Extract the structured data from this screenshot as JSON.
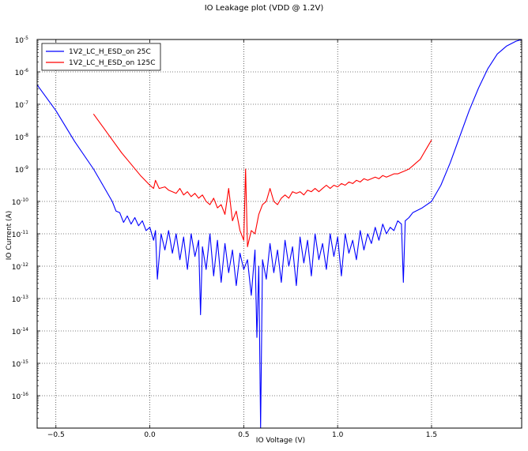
{
  "chart_data": {
    "type": "line",
    "title": "IO Leakage plot (VDD @ 1.2V)",
    "xlabel": "IO Voltage (V)",
    "ylabel": "IO Current (A)",
    "xlim": [
      -0.6,
      1.98
    ],
    "ylim_log10": [
      -17.0,
      -5.0
    ],
    "y_scale": "log",
    "x_ticks": [
      {
        "v": -0.5,
        "label": "−0.5"
      },
      {
        "v": 0.0,
        "label": "0.0"
      },
      {
        "v": 0.5,
        "label": "0.5"
      },
      {
        "v": 1.0,
        "label": "1.0"
      },
      {
        "v": 1.5,
        "label": "1.5"
      }
    ],
    "y_ticks": [
      {
        "e": -5,
        "label": "-5"
      },
      {
        "e": -6,
        "label": "-6"
      },
      {
        "e": -7,
        "label": "-7"
      },
      {
        "e": -8,
        "label": "-8"
      },
      {
        "e": -9,
        "label": "-9"
      },
      {
        "e": -10,
        "label": "-10"
      },
      {
        "e": -11,
        "label": "-11"
      },
      {
        "e": -12,
        "label": "-12"
      },
      {
        "e": -13,
        "label": "-13"
      },
      {
        "e": -14,
        "label": "-14"
      },
      {
        "e": -15,
        "label": "-15"
      },
      {
        "e": -16,
        "label": "-16"
      }
    ],
    "y_tick_base": "10",
    "grid": true,
    "legend_position": "top-left",
    "series": [
      {
        "name": "1V2_LC_H_ESD_on 25C",
        "color": "#0000ff",
        "points": [
          [
            -0.6,
            -6.4
          ],
          [
            -0.5,
            -7.2
          ],
          [
            -0.4,
            -8.15
          ],
          [
            -0.3,
            -9.0
          ],
          [
            -0.25,
            -9.5
          ],
          [
            -0.2,
            -10.0
          ],
          [
            -0.18,
            -10.3
          ],
          [
            -0.16,
            -10.35
          ],
          [
            -0.14,
            -10.65
          ],
          [
            -0.12,
            -10.45
          ],
          [
            -0.1,
            -10.7
          ],
          [
            -0.08,
            -10.5
          ],
          [
            -0.06,
            -10.75
          ],
          [
            -0.04,
            -10.6
          ],
          [
            -0.02,
            -10.9
          ],
          [
            0.0,
            -10.8
          ],
          [
            0.02,
            -11.2
          ],
          [
            0.03,
            -10.9
          ],
          [
            0.04,
            -12.4
          ],
          [
            0.06,
            -11.0
          ],
          [
            0.08,
            -11.5
          ],
          [
            0.1,
            -10.9
          ],
          [
            0.12,
            -11.6
          ],
          [
            0.14,
            -11.0
          ],
          [
            0.16,
            -11.8
          ],
          [
            0.18,
            -11.1
          ],
          [
            0.2,
            -12.1
          ],
          [
            0.22,
            -11.0
          ],
          [
            0.24,
            -11.7
          ],
          [
            0.26,
            -11.2
          ],
          [
            0.27,
            -13.5
          ],
          [
            0.28,
            -11.4
          ],
          [
            0.3,
            -12.1
          ],
          [
            0.32,
            -11.0
          ],
          [
            0.34,
            -12.3
          ],
          [
            0.36,
            -11.2
          ],
          [
            0.38,
            -12.5
          ],
          [
            0.4,
            -11.3
          ],
          [
            0.42,
            -12.2
          ],
          [
            0.44,
            -11.5
          ],
          [
            0.46,
            -12.6
          ],
          [
            0.48,
            -11.6
          ],
          [
            0.5,
            -12.1
          ],
          [
            0.52,
            -11.8
          ],
          [
            0.54,
            -12.9
          ],
          [
            0.56,
            -11.5
          ],
          [
            0.57,
            -14.2
          ],
          [
            0.58,
            -12.0
          ],
          [
            0.59,
            -17.0
          ],
          [
            0.6,
            -11.8
          ],
          [
            0.62,
            -12.4
          ],
          [
            0.64,
            -11.3
          ],
          [
            0.66,
            -12.2
          ],
          [
            0.68,
            -11.5
          ],
          [
            0.7,
            -12.5
          ],
          [
            0.72,
            -11.2
          ],
          [
            0.74,
            -12.0
          ],
          [
            0.76,
            -11.4
          ],
          [
            0.78,
            -12.6
          ],
          [
            0.8,
            -11.1
          ],
          [
            0.82,
            -11.9
          ],
          [
            0.84,
            -11.2
          ],
          [
            0.86,
            -12.3
          ],
          [
            0.88,
            -11.0
          ],
          [
            0.9,
            -11.8
          ],
          [
            0.92,
            -11.3
          ],
          [
            0.94,
            -12.1
          ],
          [
            0.96,
            -11.0
          ],
          [
            0.98,
            -11.7
          ],
          [
            1.0,
            -11.1
          ],
          [
            1.02,
            -12.3
          ],
          [
            1.04,
            -11.0
          ],
          [
            1.06,
            -11.6
          ],
          [
            1.08,
            -11.2
          ],
          [
            1.1,
            -11.8
          ],
          [
            1.12,
            -10.9
          ],
          [
            1.14,
            -11.5
          ],
          [
            1.16,
            -11.0
          ],
          [
            1.18,
            -11.3
          ],
          [
            1.2,
            -10.8
          ],
          [
            1.22,
            -11.2
          ],
          [
            1.24,
            -10.7
          ],
          [
            1.26,
            -11.0
          ],
          [
            1.28,
            -10.8
          ],
          [
            1.3,
            -10.9
          ],
          [
            1.32,
            -10.6
          ],
          [
            1.34,
            -10.7
          ],
          [
            1.35,
            -12.5
          ],
          [
            1.36,
            -10.6
          ],
          [
            1.38,
            -10.5
          ],
          [
            1.4,
            -10.35
          ],
          [
            1.45,
            -10.2
          ],
          [
            1.5,
            -10.0
          ],
          [
            1.55,
            -9.5
          ],
          [
            1.6,
            -8.8
          ],
          [
            1.65,
            -8.0
          ],
          [
            1.7,
            -7.2
          ],
          [
            1.75,
            -6.5
          ],
          [
            1.8,
            -5.9
          ],
          [
            1.85,
            -5.45
          ],
          [
            1.9,
            -5.2
          ],
          [
            1.95,
            -5.05
          ],
          [
            1.98,
            -5.0
          ]
        ]
      },
      {
        "name": "1V2_LC_H_ESD_on 125C",
        "color": "#ff0000",
        "points": [
          [
            -0.3,
            -7.3
          ],
          [
            -0.25,
            -7.7
          ],
          [
            -0.2,
            -8.1
          ],
          [
            -0.15,
            -8.5
          ],
          [
            -0.1,
            -8.85
          ],
          [
            -0.05,
            -9.2
          ],
          [
            0.0,
            -9.5
          ],
          [
            0.02,
            -9.6
          ],
          [
            0.03,
            -9.35
          ],
          [
            0.05,
            -9.6
          ],
          [
            0.08,
            -9.55
          ],
          [
            0.1,
            -9.65
          ],
          [
            0.12,
            -9.7
          ],
          [
            0.14,
            -9.75
          ],
          [
            0.16,
            -9.6
          ],
          [
            0.18,
            -9.8
          ],
          [
            0.2,
            -9.7
          ],
          [
            0.22,
            -9.85
          ],
          [
            0.24,
            -9.75
          ],
          [
            0.26,
            -9.9
          ],
          [
            0.28,
            -9.8
          ],
          [
            0.3,
            -10.0
          ],
          [
            0.32,
            -10.1
          ],
          [
            0.34,
            -9.9
          ],
          [
            0.36,
            -10.2
          ],
          [
            0.38,
            -10.1
          ],
          [
            0.4,
            -10.4
          ],
          [
            0.42,
            -9.6
          ],
          [
            0.44,
            -10.6
          ],
          [
            0.46,
            -10.3
          ],
          [
            0.48,
            -10.9
          ],
          [
            0.5,
            -11.2
          ],
          [
            0.51,
            -9.0
          ],
          [
            0.52,
            -11.4
          ],
          [
            0.54,
            -10.9
          ],
          [
            0.56,
            -11.0
          ],
          [
            0.58,
            -10.4
          ],
          [
            0.6,
            -10.1
          ],
          [
            0.62,
            -10.0
          ],
          [
            0.64,
            -9.6
          ],
          [
            0.66,
            -10.0
          ],
          [
            0.68,
            -10.1
          ],
          [
            0.7,
            -9.9
          ],
          [
            0.72,
            -9.8
          ],
          [
            0.74,
            -9.9
          ],
          [
            0.76,
            -9.7
          ],
          [
            0.78,
            -9.75
          ],
          [
            0.8,
            -9.7
          ],
          [
            0.82,
            -9.8
          ],
          [
            0.84,
            -9.65
          ],
          [
            0.86,
            -9.7
          ],
          [
            0.88,
            -9.6
          ],
          [
            0.9,
            -9.7
          ],
          [
            0.92,
            -9.6
          ],
          [
            0.94,
            -9.5
          ],
          [
            0.96,
            -9.6
          ],
          [
            0.98,
            -9.5
          ],
          [
            1.0,
            -9.55
          ],
          [
            1.02,
            -9.45
          ],
          [
            1.04,
            -9.5
          ],
          [
            1.06,
            -9.4
          ],
          [
            1.08,
            -9.45
          ],
          [
            1.1,
            -9.35
          ],
          [
            1.12,
            -9.4
          ],
          [
            1.14,
            -9.3
          ],
          [
            1.16,
            -9.35
          ],
          [
            1.18,
            -9.3
          ],
          [
            1.2,
            -9.25
          ],
          [
            1.22,
            -9.3
          ],
          [
            1.24,
            -9.2
          ],
          [
            1.26,
            -9.25
          ],
          [
            1.28,
            -9.2
          ],
          [
            1.3,
            -9.15
          ],
          [
            1.32,
            -9.15
          ],
          [
            1.34,
            -9.1
          ],
          [
            1.36,
            -9.05
          ],
          [
            1.38,
            -9.0
          ],
          [
            1.4,
            -8.9
          ],
          [
            1.42,
            -8.8
          ],
          [
            1.44,
            -8.7
          ],
          [
            1.46,
            -8.5
          ],
          [
            1.48,
            -8.3
          ],
          [
            1.5,
            -8.1
          ]
        ]
      }
    ]
  }
}
